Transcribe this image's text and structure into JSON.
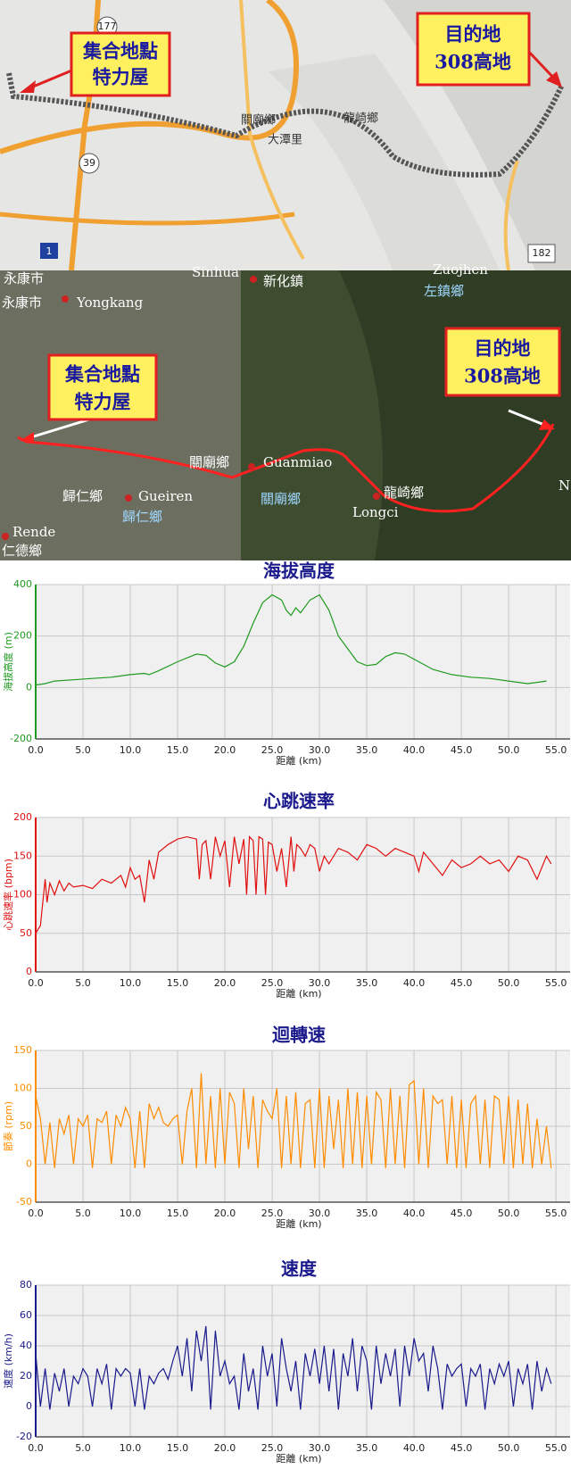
{
  "maps": [
    {
      "callouts": [
        [
          "集合地點",
          "特力屋"
        ],
        [
          "目的地",
          "308高地"
        ]
      ],
      "roads": [
        "177",
        "39",
        "1",
        "182"
      ],
      "places": [
        "龍崎鄉",
        "關廟鄉",
        "大潭里"
      ]
    },
    {
      "callouts": [
        [
          "集合地點",
          "特力屋"
        ],
        [
          "目的地",
          "308高地"
        ]
      ],
      "places": [
        "永康市",
        "永康市",
        "Yongkang",
        "Sinhua",
        "新化鎮",
        "Zuojhen",
        "左鎮鄉",
        "關廟鄉",
        "Guanmiao",
        "關廟鄉",
        "歸仁鄉",
        "Gueiren",
        "歸仁鄉",
        "Rende",
        "仁德鄉",
        "龍崎鄉",
        "Longci",
        "N"
      ]
    }
  ],
  "chart_data": [
    {
      "type": "line",
      "title": "海拔高度",
      "xlabel": "距離 (km)",
      "ylabel": "海拔高度 (m)",
      "color": "#1f9a1f",
      "grid": true,
      "x": [
        0,
        1,
        2,
        4,
        6,
        8,
        10,
        11.5,
        12,
        13,
        15,
        17,
        18,
        19,
        20,
        21,
        22,
        23,
        24,
        25,
        26,
        26.5,
        27,
        27.5,
        28,
        29,
        30,
        31,
        32,
        33,
        34,
        35,
        36,
        37,
        38,
        39,
        40,
        42,
        44,
        46,
        48,
        50,
        52,
        53,
        54
      ],
      "values": [
        10,
        15,
        25,
        30,
        35,
        40,
        50,
        55,
        50,
        65,
        100,
        130,
        125,
        95,
        80,
        100,
        160,
        250,
        330,
        360,
        340,
        300,
        280,
        310,
        290,
        340,
        360,
        300,
        200,
        150,
        100,
        85,
        90,
        120,
        135,
        130,
        110,
        70,
        50,
        40,
        35,
        25,
        15,
        20,
        25
      ],
      "xlim": [
        0,
        56.5
      ],
      "xticks": [
        {
          "value": 0,
          "label": "0.0"
        },
        {
          "value": 5,
          "label": "5.0"
        },
        {
          "value": 10,
          "label": "10.0"
        },
        {
          "value": 15,
          "label": "15.0"
        },
        {
          "value": 20,
          "label": "20.0"
        },
        {
          "value": 25,
          "label": "25.0"
        },
        {
          "value": 30,
          "label": "30.0"
        },
        {
          "value": 35,
          "label": "35.0"
        },
        {
          "value": 40,
          "label": "40.0"
        },
        {
          "value": 45,
          "label": "45.0"
        },
        {
          "value": 50,
          "label": "50.0"
        },
        {
          "value": 55,
          "label": "55.0"
        }
      ],
      "ylim": [
        -200,
        400
      ],
      "yticks": [
        -200,
        0,
        200,
        400
      ]
    },
    {
      "type": "line",
      "title": "心跳速率",
      "xlabel": "距離 (km)",
      "ylabel": "心跳速率 (bpm)",
      "color": "#e01010",
      "grid": true,
      "x": [
        0,
        0.5,
        1,
        1.2,
        1.5,
        2,
        2.5,
        3,
        3.5,
        4,
        5,
        6,
        7,
        8,
        9,
        9.5,
        10,
        10.5,
        11,
        11.5,
        12,
        12.5,
        13,
        14,
        15,
        16,
        17,
        17.3,
        17.6,
        18,
        18.5,
        19,
        19.5,
        20,
        20.5,
        21,
        21.5,
        22,
        22.3,
        22.6,
        23,
        23.3,
        23.6,
        24,
        24.3,
        24.6,
        25,
        25.5,
        26,
        26.5,
        27,
        27.3,
        27.6,
        28,
        28.5,
        29,
        29.5,
        30,
        30.5,
        31,
        32,
        33,
        34,
        35,
        36,
        37,
        38,
        39,
        40,
        40.5,
        41,
        42,
        43,
        44,
        45,
        46,
        47,
        48,
        49,
        50,
        51,
        52,
        53,
        54,
        54.5
      ],
      "values": [
        50,
        60,
        120,
        90,
        115,
        100,
        118,
        105,
        115,
        110,
        112,
        108,
        120,
        115,
        125,
        110,
        135,
        120,
        125,
        90,
        145,
        120,
        155,
        165,
        172,
        175,
        172,
        120,
        165,
        170,
        120,
        175,
        150,
        170,
        110,
        175,
        140,
        172,
        100,
        175,
        170,
        100,
        175,
        172,
        100,
        168,
        165,
        130,
        160,
        110,
        175,
        130,
        165,
        160,
        150,
        165,
        160,
        130,
        150,
        140,
        160,
        155,
        145,
        165,
        160,
        150,
        160,
        155,
        150,
        130,
        155,
        140,
        125,
        145,
        135,
        140,
        150,
        140,
        145,
        130,
        150,
        145,
        120,
        150,
        140
      ],
      "xlim": [
        0,
        56.5
      ],
      "xticks": [
        {
          "value": 0,
          "label": "0.0"
        },
        {
          "value": 5,
          "label": "5.0"
        },
        {
          "value": 10,
          "label": "10.0"
        },
        {
          "value": 15,
          "label": "15.0"
        },
        {
          "value": 20,
          "label": "20.0"
        },
        {
          "value": 25,
          "label": "25.0"
        },
        {
          "value": 30,
          "label": "30.0"
        },
        {
          "value": 35,
          "label": "35.0"
        },
        {
          "value": 40,
          "label": "40.0"
        },
        {
          "value": 45,
          "label": "45.0"
        },
        {
          "value": 50,
          "label": "50.0"
        },
        {
          "value": 55,
          "label": "55.0"
        }
      ],
      "ylim": [
        0,
        200
      ],
      "yticks": [
        0,
        50,
        100,
        150,
        200
      ]
    },
    {
      "type": "line",
      "title": "迴轉速",
      "xlabel": "距離 (km)",
      "ylabel": "節奏 (rpm)",
      "color": "#ff8c00",
      "grid": true,
      "x": [
        0,
        0.5,
        1,
        1.5,
        2,
        2.5,
        3,
        3.5,
        4,
        4.5,
        5,
        5.5,
        6,
        6.5,
        7,
        7.5,
        8,
        8.5,
        9,
        9.5,
        10,
        10.5,
        11,
        11.5,
        12,
        12.5,
        13,
        13.5,
        14,
        14.5,
        15,
        15.5,
        16,
        16.5,
        17,
        17.5,
        18,
        18.5,
        19,
        19.5,
        20,
        20.5,
        21,
        21.5,
        22,
        22.5,
        23,
        23.5,
        24,
        24.5,
        25,
        25.5,
        26,
        26.5,
        27,
        27.5,
        28,
        28.5,
        29,
        29.5,
        30,
        30.5,
        31,
        31.5,
        32,
        32.5,
        33,
        33.5,
        34,
        34.5,
        35,
        35.5,
        36,
        36.5,
        37,
        37.5,
        38,
        38.5,
        39,
        39.5,
        40,
        40.5,
        41,
        41.5,
        42,
        42.5,
        43,
        43.5,
        44,
        44.5,
        45,
        45.5,
        46,
        46.5,
        47,
        47.5,
        48,
        48.5,
        49,
        49.5,
        50,
        50.5,
        51,
        51.5,
        52,
        52.5,
        53,
        53.5,
        54,
        54.5
      ],
      "values": [
        90,
        60,
        0,
        55,
        -5,
        60,
        40,
        65,
        0,
        60,
        50,
        65,
        -5,
        60,
        55,
        70,
        0,
        65,
        50,
        75,
        60,
        -5,
        70,
        -5,
        80,
        60,
        75,
        55,
        50,
        60,
        65,
        0,
        70,
        100,
        -5,
        120,
        0,
        90,
        -5,
        100,
        0,
        95,
        80,
        -5,
        100,
        20,
        90,
        -5,
        85,
        70,
        60,
        100,
        -5,
        90,
        0,
        95,
        -5,
        80,
        85,
        -5,
        100,
        -5,
        90,
        20,
        85,
        -5,
        100,
        0,
        95,
        -5,
        90,
        0,
        95,
        85,
        -5,
        100,
        0,
        90,
        -5,
        105,
        110,
        0,
        100,
        -5,
        90,
        80,
        85,
        0,
        90,
        -5,
        85,
        -5,
        80,
        90,
        0,
        85,
        -5,
        90,
        85,
        0,
        90,
        -5,
        85,
        0,
        80,
        -5,
        60,
        0,
        50,
        -5
      ],
      "xlim": [
        0,
        56.5
      ],
      "xticks": [
        {
          "value": 0,
          "label": "0.0"
        },
        {
          "value": 5,
          "label": "5.0"
        },
        {
          "value": 10,
          "label": "10.0"
        },
        {
          "value": 15,
          "label": "15.0"
        },
        {
          "value": 20,
          "label": "20.0"
        },
        {
          "value": 25,
          "label": "25.0"
        },
        {
          "value": 30,
          "label": "30.0"
        },
        {
          "value": 35,
          "label": "35.0"
        },
        {
          "value": 40,
          "label": "40.0"
        },
        {
          "value": 45,
          "label": "45.0"
        },
        {
          "value": 50,
          "label": "50.0"
        },
        {
          "value": 55,
          "label": "55.0"
        }
      ],
      "ylim": [
        -50,
        150
      ],
      "yticks": [
        -50,
        0,
        50,
        100,
        150
      ]
    },
    {
      "type": "line",
      "title": "速度",
      "xlabel": "距離 (km)",
      "ylabel": "速度 (km/h)",
      "color": "#1a1a8c",
      "grid": true,
      "x": [
        0,
        0.5,
        1,
        1.5,
        2,
        2.5,
        3,
        3.5,
        4,
        4.5,
        5,
        5.5,
        6,
        6.5,
        7,
        7.5,
        8,
        8.5,
        9,
        9.5,
        10,
        10.5,
        11,
        11.5,
        12,
        12.5,
        13,
        13.5,
        14,
        14.5,
        15,
        15.5,
        16,
        16.5,
        17,
        17.5,
        18,
        18.5,
        19,
        19.5,
        20,
        20.5,
        21,
        21.5,
        22,
        22.5,
        23,
        23.5,
        24,
        24.5,
        25,
        25.5,
        26,
        26.5,
        27,
        27.5,
        28,
        28.5,
        29,
        29.5,
        30,
        30.5,
        31,
        31.5,
        32,
        32.5,
        33,
        33.5,
        34,
        34.5,
        35,
        35.5,
        36,
        36.5,
        37,
        37.5,
        38,
        38.5,
        39,
        39.5,
        40,
        40.5,
        41,
        41.5,
        42,
        42.5,
        43,
        43.5,
        44,
        44.5,
        45,
        45.5,
        46,
        46.5,
        47,
        47.5,
        48,
        48.5,
        49,
        49.5,
        50,
        50.5,
        51,
        51.5,
        52,
        52.5,
        53,
        53.5,
        54,
        54.5
      ],
      "values": [
        35,
        0,
        25,
        -2,
        22,
        10,
        25,
        0,
        20,
        15,
        25,
        20,
        0,
        25,
        15,
        28,
        -2,
        25,
        20,
        25,
        22,
        0,
        25,
        -2,
        20,
        15,
        22,
        25,
        18,
        30,
        40,
        20,
        45,
        10,
        50,
        30,
        53,
        -2,
        50,
        20,
        30,
        15,
        20,
        -2,
        35,
        10,
        25,
        -2,
        40,
        20,
        35,
        0,
        45,
        25,
        10,
        30,
        -2,
        35,
        20,
        38,
        15,
        40,
        10,
        38,
        -2,
        35,
        20,
        45,
        10,
        40,
        30,
        -2,
        40,
        15,
        35,
        20,
        38,
        0,
        40,
        20,
        45,
        30,
        35,
        10,
        40,
        25,
        -2,
        28,
        20,
        25,
        28,
        0,
        25,
        20,
        28,
        -2,
        25,
        15,
        28,
        20,
        30,
        0,
        25,
        15,
        28,
        -2,
        30,
        10,
        25,
        15
      ],
      "xlim": [
        0,
        56.5
      ],
      "xticks": [
        {
          "value": 0,
          "label": "0.0"
        },
        {
          "value": 5,
          "label": "5.0"
        },
        {
          "value": 10,
          "label": "10.0"
        },
        {
          "value": 15,
          "label": "15.0"
        },
        {
          "value": 20,
          "label": "20.0"
        },
        {
          "value": 25,
          "label": "25.0"
        },
        {
          "value": 30,
          "label": "30.0"
        },
        {
          "value": 35,
          "label": "35.0"
        },
        {
          "value": 40,
          "label": "40.0"
        },
        {
          "value": 45,
          "label": "45.0"
        },
        {
          "value": 50,
          "label": "50.0"
        },
        {
          "value": 55,
          "label": "55.0"
        }
      ],
      "ylim": [
        -20,
        80
      ],
      "yticks": [
        -20,
        0,
        20,
        40,
        60,
        80
      ]
    }
  ]
}
